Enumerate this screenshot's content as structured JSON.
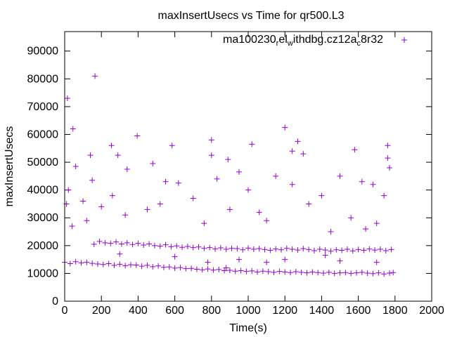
{
  "chart_data": {
    "type": "scatter",
    "title": "maxInsertUsecs vs Time for qr500.L3",
    "xlabel": "Time(s)",
    "ylabel": "maxInsertUsecs",
    "xlim": [
      0,
      2000
    ],
    "ylim": [
      0,
      97000
    ],
    "xticks": [
      0,
      200,
      400,
      600,
      800,
      1000,
      1200,
      1400,
      1600,
      1800,
      2000
    ],
    "yticks": [
      0,
      10000,
      20000,
      30000,
      40000,
      50000,
      60000,
      70000,
      80000,
      90000
    ],
    "grid": false,
    "legend_position": "top-right",
    "series": [
      {
        "name": "ma100230_rel_withdbg.cz12a_c8r32",
        "color": "#9400d3",
        "marker": "plus",
        "points": [
          [
            0,
            14000
          ],
          [
            30,
            13500
          ],
          [
            60,
            14200
          ],
          [
            90,
            13800
          ],
          [
            120,
            14000
          ],
          [
            150,
            13600
          ],
          [
            180,
            13400
          ],
          [
            210,
            13200
          ],
          [
            240,
            13500
          ],
          [
            270,
            12900
          ],
          [
            300,
            13300
          ],
          [
            330,
            12800
          ],
          [
            360,
            13100
          ],
          [
            390,
            13000
          ],
          [
            420,
            12600
          ],
          [
            450,
            12900
          ],
          [
            480,
            12400
          ],
          [
            510,
            12700
          ],
          [
            540,
            12200
          ],
          [
            570,
            12300
          ],
          [
            600,
            11900
          ],
          [
            630,
            12100
          ],
          [
            660,
            11700
          ],
          [
            690,
            11800
          ],
          [
            720,
            11500
          ],
          [
            750,
            11300
          ],
          [
            780,
            11600
          ],
          [
            810,
            11200
          ],
          [
            840,
            11400
          ],
          [
            870,
            11000
          ],
          [
            900,
            11100
          ],
          [
            930,
            10800
          ],
          [
            960,
            11000
          ],
          [
            990,
            10700
          ],
          [
            1020,
            10900
          ],
          [
            1050,
            10500
          ],
          [
            1080,
            10800
          ],
          [
            1110,
            10600
          ],
          [
            1140,
            10400
          ],
          [
            1170,
            10700
          ],
          [
            1200,
            10500
          ],
          [
            1230,
            10300
          ],
          [
            1260,
            10600
          ],
          [
            1290,
            10400
          ],
          [
            1320,
            10200
          ],
          [
            1350,
            10500
          ],
          [
            1380,
            10300
          ],
          [
            1410,
            10100
          ],
          [
            1440,
            10400
          ],
          [
            1470,
            10000
          ],
          [
            1500,
            10200
          ],
          [
            1530,
            10300
          ],
          [
            1560,
            10000
          ],
          [
            1590,
            10200
          ],
          [
            1620,
            10400
          ],
          [
            1650,
            10100
          ],
          [
            1680,
            9900
          ],
          [
            1710,
            10200
          ],
          [
            1740,
            9800
          ],
          [
            1770,
            10100
          ],
          [
            1790,
            10300
          ],
          [
            160,
            20500
          ],
          [
            190,
            21500
          ],
          [
            220,
            21000
          ],
          [
            250,
            20800
          ],
          [
            280,
            21300
          ],
          [
            310,
            20600
          ],
          [
            340,
            21000
          ],
          [
            370,
            20400
          ],
          [
            400,
            20800
          ],
          [
            430,
            20200
          ],
          [
            460,
            20600
          ],
          [
            490,
            20000
          ],
          [
            520,
            19800
          ],
          [
            550,
            20300
          ],
          [
            580,
            19600
          ],
          [
            610,
            19900
          ],
          [
            640,
            19400
          ],
          [
            670,
            19700
          ],
          [
            700,
            19300
          ],
          [
            730,
            19500
          ],
          [
            760,
            19000
          ],
          [
            790,
            19300
          ],
          [
            820,
            18800
          ],
          [
            850,
            19200
          ],
          [
            880,
            18700
          ],
          [
            910,
            19000
          ],
          [
            940,
            18900
          ],
          [
            970,
            18500
          ],
          [
            1000,
            19100
          ],
          [
            1030,
            18700
          ],
          [
            1060,
            18900
          ],
          [
            1090,
            18600
          ],
          [
            1120,
            18300
          ],
          [
            1150,
            18800
          ],
          [
            1180,
            18500
          ],
          [
            1210,
            19000
          ],
          [
            1240,
            18700
          ],
          [
            1270,
            18400
          ],
          [
            1300,
            18900
          ],
          [
            1330,
            18600
          ],
          [
            1360,
            18200
          ],
          [
            1390,
            18700
          ],
          [
            1420,
            18400
          ],
          [
            1450,
            18000
          ],
          [
            1480,
            18500
          ],
          [
            1510,
            18300
          ],
          [
            1540,
            18700
          ],
          [
            1570,
            18100
          ],
          [
            1600,
            18600
          ],
          [
            1630,
            18300
          ],
          [
            1660,
            18800
          ],
          [
            1690,
            18400
          ],
          [
            1720,
            18700
          ],
          [
            1750,
            18200
          ],
          [
            1780,
            18600
          ],
          [
            15,
            73000
          ],
          [
            45,
            62000
          ],
          [
            165,
            81000
          ],
          [
            255,
            56000
          ],
          [
            395,
            59500
          ],
          [
            585,
            56000
          ],
          [
            800,
            58000
          ],
          [
            1200,
            62500
          ],
          [
            1270,
            57500
          ],
          [
            1580,
            54500
          ],
          [
            1760,
            56000
          ],
          [
            1760,
            51500
          ],
          [
            1770,
            48000
          ],
          [
            60,
            48500
          ],
          [
            140,
            52500
          ],
          [
            290,
            52500
          ],
          [
            480,
            49500
          ],
          [
            800,
            52500
          ],
          [
            890,
            51000
          ],
          [
            1020,
            56500
          ],
          [
            1240,
            54000
          ],
          [
            1300,
            53000
          ],
          [
            1740,
            38000
          ],
          [
            20,
            40000
          ],
          [
            10,
            35000
          ],
          [
            100,
            36000
          ],
          [
            200,
            34000
          ],
          [
            340,
            47500
          ],
          [
            550,
            43000
          ],
          [
            620,
            42500
          ],
          [
            700,
            37000
          ],
          [
            830,
            44000
          ],
          [
            950,
            46500
          ],
          [
            1000,
            40000
          ],
          [
            1150,
            45000
          ],
          [
            1240,
            42000
          ],
          [
            1400,
            38000
          ],
          [
            1500,
            45000
          ],
          [
            1620,
            43000
          ],
          [
            1680,
            42000
          ],
          [
            150,
            43500
          ],
          [
            260,
            38000
          ],
          [
            450,
            33000
          ],
          [
            520,
            35000
          ],
          [
            900,
            33000
          ],
          [
            1060,
            32000
          ],
          [
            1330,
            35000
          ],
          [
            1560,
            30000
          ],
          [
            1640,
            26000
          ],
          [
            40,
            27000
          ],
          [
            120,
            29000
          ],
          [
            330,
            31000
          ],
          [
            760,
            28000
          ],
          [
            1100,
            29000
          ],
          [
            1450,
            25000
          ],
          [
            1700,
            28000
          ],
          [
            600,
            16000
          ],
          [
            950,
            15000
          ],
          [
            1420,
            16500
          ],
          [
            1200,
            15000
          ],
          [
            300,
            17000
          ],
          [
            780,
            14000
          ],
          [
            1100,
            14000
          ],
          [
            1500,
            14500
          ],
          [
            1700,
            14000
          ],
          [
            880,
            12000
          ]
        ]
      }
    ]
  }
}
